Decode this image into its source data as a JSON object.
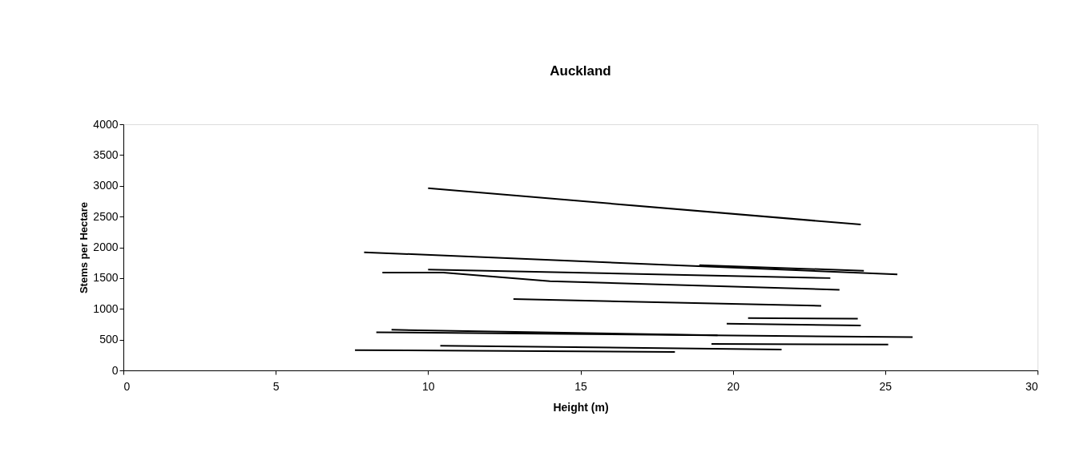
{
  "chart_data": {
    "type": "line",
    "title": "Auckland",
    "xlabel": "Height (m)",
    "ylabel": "Stems per Hectare",
    "xlim": [
      0,
      30
    ],
    "xticks": [
      0,
      5,
      10,
      15,
      20,
      25,
      30
    ],
    "ylim": [
      0,
      4000
    ],
    "yticks": [
      0,
      500,
      1000,
      1500,
      2000,
      2500,
      3000,
      3500,
      4000
    ],
    "grid": false,
    "legend": false,
    "marker": "none",
    "line_style": "solid",
    "series": [
      {
        "color": "#000000",
        "x": [
          10.0,
          24.2
        ],
        "values": [
          2960,
          2370
        ]
      },
      {
        "color": "#000000",
        "x": [
          7.9,
          25.4
        ],
        "values": [
          1920,
          1560
        ]
      },
      {
        "color": "#000000",
        "x": [
          18.9,
          24.3
        ],
        "values": [
          1710,
          1620
        ]
      },
      {
        "color": "#000000",
        "x": [
          10.0,
          23.2
        ],
        "values": [
          1640,
          1500
        ]
      },
      {
        "color": "#000000",
        "x": [
          8.5,
          10.5,
          14.0,
          23.5
        ],
        "values": [
          1590,
          1590,
          1450,
          1310
        ]
      },
      {
        "color": "#000000",
        "x": [
          12.8,
          22.9
        ],
        "values": [
          1160,
          1050
        ]
      },
      {
        "color": "#000000",
        "x": [
          20.5,
          24.1
        ],
        "values": [
          850,
          840
        ]
      },
      {
        "color": "#000000",
        "x": [
          19.8,
          24.2
        ],
        "values": [
          760,
          730
        ]
      },
      {
        "color": "#000000",
        "x": [
          8.8,
          19.5
        ],
        "values": [
          660,
          570
        ]
      },
      {
        "color": "#000000",
        "x": [
          8.3,
          25.9
        ],
        "values": [
          620,
          540
        ]
      },
      {
        "color": "#000000",
        "x": [
          19.3,
          25.1
        ],
        "values": [
          430,
          420
        ]
      },
      {
        "color": "#000000",
        "x": [
          10.4,
          21.6
        ],
        "values": [
          400,
          340
        ]
      },
      {
        "color": "#000000",
        "x": [
          7.6,
          18.1
        ],
        "values": [
          330,
          300
        ]
      }
    ]
  }
}
